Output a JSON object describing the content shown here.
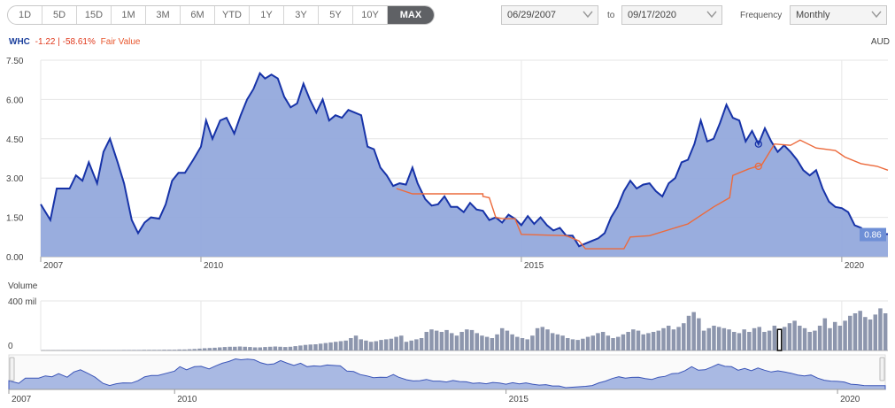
{
  "toolbar": {
    "ranges": [
      "1D",
      "5D",
      "15D",
      "1M",
      "3M",
      "6M",
      "YTD",
      "1Y",
      "3Y",
      "5Y",
      "10Y",
      "MAX"
    ],
    "active": "MAX",
    "from_date": "06/29/2007",
    "to_label": "to",
    "to_date": "09/17/2020",
    "frequency_label": "Frequency",
    "frequency_value": "Monthly"
  },
  "legend": {
    "ticker": "WHC",
    "change": "-1.22 | -58.61%",
    "fair_value": "Fair Value",
    "currency": "AUD"
  },
  "volume_label": "Volume",
  "colors": {
    "price_line": "#1733a8",
    "price_fill": "#94a9dc",
    "fair_value": "#ec6a3c",
    "volume_bar": "#8d96ad",
    "nav_fill": "#a9b9e3",
    "last_badge": "#6e8fd6"
  },
  "chart_data": {
    "type": "area",
    "y_ticks": [
      "7.50",
      "6.00",
      "4.50",
      "3.00",
      "1.50",
      "0.00"
    ],
    "ylim": [
      0,
      7.5
    ],
    "x_ticks": [
      "2007",
      "2010",
      "2015",
      "2020"
    ],
    "x_tick_years": [
      2007.5,
      2010,
      2015,
      2020
    ],
    "x_range": [
      2007.5,
      2020.72
    ],
    "last_value_label": "0.86",
    "series": [
      {
        "name": "WHC",
        "points": [
          [
            2007.5,
            2.0
          ],
          [
            2007.65,
            1.4
          ],
          [
            2007.75,
            2.6
          ],
          [
            2007.95,
            2.6
          ],
          [
            2008.05,
            3.1
          ],
          [
            2008.15,
            2.9
          ],
          [
            2008.25,
            3.6
          ],
          [
            2008.38,
            2.8
          ],
          [
            2008.48,
            4.0
          ],
          [
            2008.58,
            4.5
          ],
          [
            2008.7,
            3.6
          ],
          [
            2008.8,
            2.8
          ],
          [
            2008.92,
            1.4
          ],
          [
            2009.02,
            0.9
          ],
          [
            2009.12,
            1.3
          ],
          [
            2009.22,
            1.5
          ],
          [
            2009.35,
            1.45
          ],
          [
            2009.45,
            2.0
          ],
          [
            2009.55,
            2.9
          ],
          [
            2009.65,
            3.2
          ],
          [
            2009.75,
            3.2
          ],
          [
            2009.88,
            3.7
          ],
          [
            2010.0,
            4.2
          ],
          [
            2010.08,
            5.2
          ],
          [
            2010.18,
            4.5
          ],
          [
            2010.3,
            5.2
          ],
          [
            2010.4,
            5.3
          ],
          [
            2010.52,
            4.7
          ],
          [
            2010.62,
            5.4
          ],
          [
            2010.72,
            6.0
          ],
          [
            2010.82,
            6.4
          ],
          [
            2010.92,
            7.0
          ],
          [
            2011.0,
            6.8
          ],
          [
            2011.1,
            6.95
          ],
          [
            2011.2,
            6.8
          ],
          [
            2011.3,
            6.1
          ],
          [
            2011.4,
            5.7
          ],
          [
            2011.5,
            5.85
          ],
          [
            2011.6,
            6.6
          ],
          [
            2011.7,
            6.0
          ],
          [
            2011.8,
            5.5
          ],
          [
            2011.9,
            6.0
          ],
          [
            2012.0,
            5.2
          ],
          [
            2012.1,
            5.4
          ],
          [
            2012.2,
            5.3
          ],
          [
            2012.3,
            5.6
          ],
          [
            2012.4,
            5.5
          ],
          [
            2012.5,
            5.4
          ],
          [
            2012.6,
            4.2
          ],
          [
            2012.7,
            4.1
          ],
          [
            2012.8,
            3.4
          ],
          [
            2012.9,
            3.1
          ],
          [
            2013.0,
            2.7
          ],
          [
            2013.1,
            2.8
          ],
          [
            2013.2,
            2.75
          ],
          [
            2013.3,
            3.4
          ],
          [
            2013.38,
            2.8
          ],
          [
            2013.5,
            2.2
          ],
          [
            2013.6,
            1.95
          ],
          [
            2013.7,
            2.0
          ],
          [
            2013.8,
            2.3
          ],
          [
            2013.9,
            1.9
          ],
          [
            2014.0,
            1.9
          ],
          [
            2014.1,
            1.7
          ],
          [
            2014.2,
            2.05
          ],
          [
            2014.3,
            1.8
          ],
          [
            2014.4,
            1.75
          ],
          [
            2014.5,
            1.4
          ],
          [
            2014.6,
            1.5
          ],
          [
            2014.7,
            1.3
          ],
          [
            2014.8,
            1.6
          ],
          [
            2014.9,
            1.45
          ],
          [
            2015.0,
            1.2
          ],
          [
            2015.1,
            1.55
          ],
          [
            2015.2,
            1.25
          ],
          [
            2015.3,
            1.5
          ],
          [
            2015.4,
            1.2
          ],
          [
            2015.5,
            1.0
          ],
          [
            2015.6,
            1.1
          ],
          [
            2015.7,
            0.8
          ],
          [
            2015.8,
            0.8
          ],
          [
            2015.9,
            0.4
          ],
          [
            2016.0,
            0.5
          ],
          [
            2016.1,
            0.6
          ],
          [
            2016.2,
            0.7
          ],
          [
            2016.3,
            0.9
          ],
          [
            2016.4,
            1.5
          ],
          [
            2016.5,
            1.9
          ],
          [
            2016.6,
            2.5
          ],
          [
            2016.7,
            2.9
          ],
          [
            2016.8,
            2.6
          ],
          [
            2016.9,
            2.75
          ],
          [
            2017.0,
            2.8
          ],
          [
            2017.1,
            2.5
          ],
          [
            2017.2,
            2.3
          ],
          [
            2017.3,
            2.8
          ],
          [
            2017.4,
            3.0
          ],
          [
            2017.5,
            3.6
          ],
          [
            2017.6,
            3.7
          ],
          [
            2017.7,
            4.3
          ],
          [
            2017.8,
            5.2
          ],
          [
            2017.9,
            4.4
          ],
          [
            2018.0,
            4.5
          ],
          [
            2018.1,
            5.1
          ],
          [
            2018.2,
            5.8
          ],
          [
            2018.3,
            5.3
          ],
          [
            2018.4,
            5.2
          ],
          [
            2018.5,
            4.4
          ],
          [
            2018.6,
            4.8
          ],
          [
            2018.7,
            4.3
          ],
          [
            2018.8,
            4.9
          ],
          [
            2018.9,
            4.4
          ],
          [
            2019.0,
            4.0
          ],
          [
            2019.1,
            4.25
          ],
          [
            2019.2,
            4.0
          ],
          [
            2019.3,
            3.7
          ],
          [
            2019.4,
            3.3
          ],
          [
            2019.5,
            3.1
          ],
          [
            2019.6,
            3.3
          ],
          [
            2019.7,
            2.6
          ],
          [
            2019.8,
            2.1
          ],
          [
            2019.9,
            1.9
          ],
          [
            2020.0,
            1.85
          ],
          [
            2020.1,
            1.7
          ],
          [
            2020.2,
            1.2
          ],
          [
            2020.3,
            1.1
          ],
          [
            2020.4,
            0.9
          ],
          [
            2020.5,
            0.86
          ],
          [
            2020.72,
            0.86
          ]
        ]
      },
      {
        "name": "Fair Value",
        "points": [
          [
            2013.05,
            2.6
          ],
          [
            2013.3,
            2.4
          ],
          [
            2014.4,
            2.4
          ],
          [
            2014.4,
            2.3
          ],
          [
            2014.5,
            2.25
          ],
          [
            2014.6,
            1.5
          ],
          [
            2014.7,
            1.45
          ],
          [
            2014.9,
            1.45
          ],
          [
            2015.0,
            0.85
          ],
          [
            2015.7,
            0.8
          ],
          [
            2015.9,
            0.6
          ],
          [
            2016.0,
            0.3
          ],
          [
            2016.6,
            0.3
          ],
          [
            2016.7,
            0.75
          ],
          [
            2017.0,
            0.8
          ],
          [
            2017.6,
            1.25
          ],
          [
            2018.0,
            1.9
          ],
          [
            2018.25,
            2.25
          ],
          [
            2018.3,
            3.1
          ],
          [
            2018.55,
            3.35
          ],
          [
            2018.75,
            3.5
          ],
          [
            2018.95,
            4.3
          ],
          [
            2019.2,
            4.25
          ],
          [
            2019.35,
            4.45
          ],
          [
            2019.6,
            4.15
          ],
          [
            2019.9,
            4.05
          ],
          [
            2020.05,
            3.8
          ],
          [
            2020.3,
            3.55
          ],
          [
            2020.55,
            3.45
          ],
          [
            2020.72,
            3.3
          ]
        ]
      }
    ],
    "markers": [
      {
        "series": "WHC",
        "x": 2018.7,
        "y": 4.3
      },
      {
        "series": "Fair Value",
        "x": 2018.7,
        "y": 3.45
      }
    ],
    "volume": {
      "ylim": [
        0,
        400
      ],
      "y_ticks": [
        "400 mil",
        "0"
      ],
      "highlight_index": 146,
      "values": [
        2,
        2,
        2,
        2,
        2,
        2,
        2,
        2,
        3,
        3,
        3,
        3,
        3,
        3,
        3,
        3,
        4,
        4,
        4,
        4,
        5,
        5,
        5,
        5,
        6,
        6,
        6,
        8,
        8,
        10,
        12,
        15,
        18,
        20,
        22,
        25,
        28,
        30,
        30,
        32,
        30,
        28,
        25,
        25,
        28,
        30,
        32,
        30,
        28,
        30,
        35,
        40,
        45,
        48,
        50,
        55,
        60,
        65,
        70,
        75,
        80,
        100,
        120,
        90,
        80,
        70,
        75,
        85,
        90,
        95,
        110,
        120,
        70,
        80,
        90,
        100,
        150,
        170,
        160,
        150,
        165,
        140,
        120,
        150,
        170,
        165,
        140,
        120,
        110,
        100,
        130,
        180,
        160,
        130,
        110,
        100,
        90,
        120,
        180,
        190,
        170,
        140,
        130,
        120,
        100,
        90,
        85,
        95,
        110,
        120,
        140,
        150,
        120,
        100,
        110,
        130,
        150,
        170,
        160,
        130,
        140,
        150,
        160,
        180,
        200,
        170,
        190,
        220,
        280,
        310,
        260,
        160,
        180,
        200,
        190,
        180,
        170,
        150,
        140,
        170,
        150,
        180,
        190,
        150,
        160,
        200,
        170,
        190,
        220,
        240,
        200,
        180,
        150,
        160,
        200,
        260,
        180,
        230,
        200,
        240,
        280,
        300,
        320,
        270,
        250,
        290,
        340,
        300
      ]
    },
    "navigator": {
      "x_ticks": [
        "2007",
        "2010",
        "2015",
        "2020"
      ]
    }
  }
}
